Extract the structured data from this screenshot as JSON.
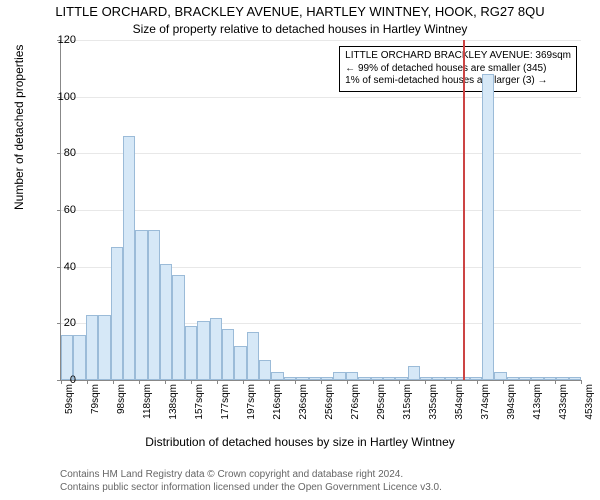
{
  "titles": {
    "line1": "LITTLE ORCHARD, BRACKLEY AVENUE, HARTLEY WINTNEY, HOOK, RG27 8QU",
    "line2": "Size of property relative to detached houses in Hartley Wintney"
  },
  "axes": {
    "ylabel": "Number of detached properties",
    "xlabel": "Distribution of detached houses by size in Hartley Wintney",
    "ylim": [
      0,
      120
    ],
    "ytick_step": 20,
    "yticks": [
      0,
      20,
      40,
      60,
      80,
      100,
      120
    ],
    "x_categories": [
      "59sqm",
      "79sqm",
      "98sqm",
      "118sqm",
      "138sqm",
      "157sqm",
      "177sqm",
      "197sqm",
      "216sqm",
      "236sqm",
      "256sqm",
      "276sqm",
      "295sqm",
      "315sqm",
      "335sqm",
      "354sqm",
      "374sqm",
      "394sqm",
      "413sqm",
      "433sqm",
      "453sqm"
    ],
    "label_fontsize": 12,
    "tick_fontsize": 11,
    "grid_color": "#e8e8e8",
    "axis_color": "#888888"
  },
  "histogram": {
    "type": "histogram",
    "bar_color": "#d6e8f7",
    "bar_border_color": "#9bbbd8",
    "background_color": "#ffffff",
    "values": [
      16,
      16,
      23,
      23,
      47,
      86,
      53,
      53,
      41,
      37,
      19,
      21,
      22,
      18,
      12,
      17,
      7,
      3,
      1,
      1,
      1,
      1,
      3,
      3,
      1,
      1,
      1,
      1,
      5,
      1,
      1,
      1,
      1,
      1,
      108,
      3,
      1,
      1,
      1,
      1,
      1,
      1
    ]
  },
  "marker": {
    "position_index_approx": 32.5,
    "color": "#cc4444",
    "info_lines": [
      "LITTLE ORCHARD BRACKLEY AVENUE: 369sqm",
      "← 99% of detached houses are smaller (345)",
      "1% of semi-detached houses are larger (3) →"
    ]
  },
  "footer": {
    "line1": "Contains HM Land Registry data © Crown copyright and database right 2024.",
    "line2": "Contains public sector information licensed under the Open Government Licence v3.0."
  }
}
